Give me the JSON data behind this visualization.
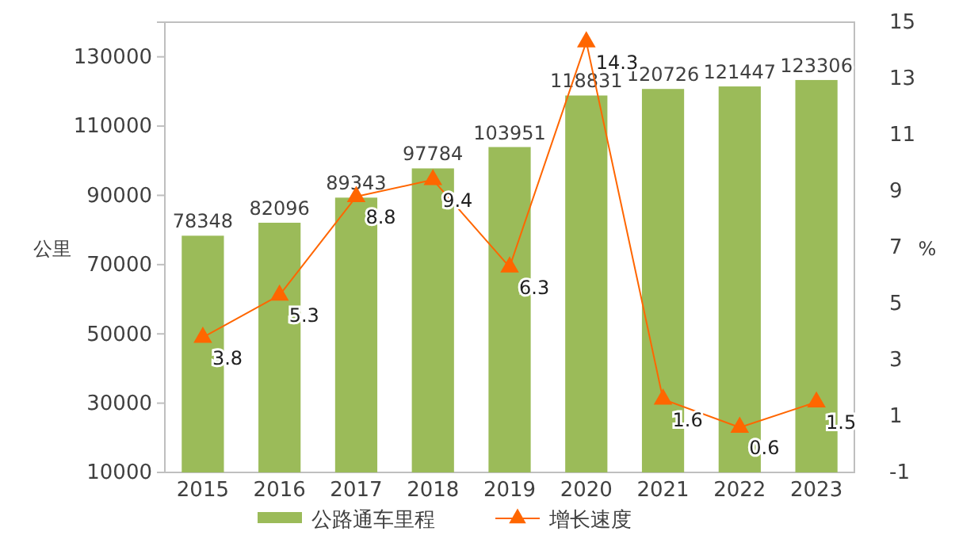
{
  "chart_data": {
    "type": "bar",
    "categories": [
      "2015",
      "2016",
      "2017",
      "2018",
      "2019",
      "2020",
      "2021",
      "2022",
      "2023"
    ],
    "ylabel": "公里",
    "y2label": "%",
    "ylim": [
      10000,
      140000
    ],
    "yticks": [
      10000,
      30000,
      50000,
      70000,
      90000,
      110000,
      130000
    ],
    "y2lim": [
      -1,
      15
    ],
    "y2ticks": [
      -1,
      1,
      3,
      5,
      7,
      9,
      11,
      13,
      15
    ],
    "series": [
      {
        "name": "公路通车里程",
        "color": "#9bbb59",
        "values": [
          78348,
          82096,
          89343,
          97784,
          103951,
          118831,
          120726,
          121447,
          123306
        ]
      },
      {
        "name": "增长速度",
        "type": "line",
        "axis": "y2",
        "color": "#ff6600",
        "marker": "triangle",
        "values": [
          3.8,
          5.3,
          8.8,
          9.4,
          6.3,
          14.3,
          1.6,
          0.6,
          1.5
        ]
      }
    ],
    "data_labels": true,
    "legend": "bottom",
    "grid": false
  }
}
